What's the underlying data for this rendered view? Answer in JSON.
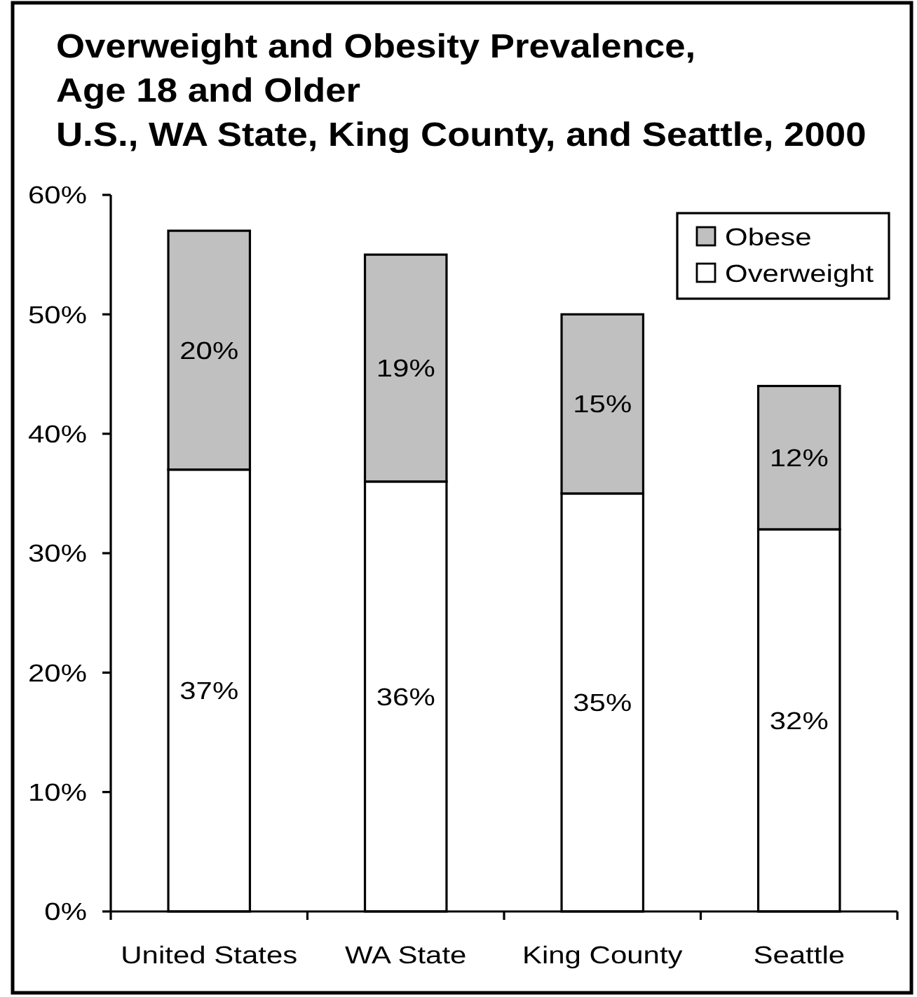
{
  "chart_data": {
    "type": "bar",
    "title": "Overweight and Obesity Prevalence,\nAge 18 and Older\nU.S., WA State, King County, and Seattle, 2000",
    "categories": [
      "United States",
      "WA State",
      "King County",
      "Seattle"
    ],
    "series": [
      {
        "name": "Overweight",
        "color": "#ffffff",
        "values": [
          37,
          36,
          35,
          32
        ],
        "value_labels": [
          "37%",
          "36%",
          "35%",
          "32%"
        ]
      },
      {
        "name": "Obese",
        "color": "#c0c0c0",
        "values": [
          20,
          19,
          15,
          12
        ],
        "value_labels": [
          "20%",
          "19%",
          "15%",
          "12%"
        ]
      }
    ],
    "stacked": true,
    "ylim": [
      0,
      60
    ],
    "yticks": [
      {
        "value": 0,
        "label": "0%"
      },
      {
        "value": 10,
        "label": "10%"
      },
      {
        "value": 20,
        "label": "20%"
      },
      {
        "value": 30,
        "label": "30%"
      },
      {
        "value": 40,
        "label": "40%"
      },
      {
        "value": 50,
        "label": "50%"
      },
      {
        "value": 60,
        "label": "60%"
      }
    ],
    "legend": "top right"
  }
}
